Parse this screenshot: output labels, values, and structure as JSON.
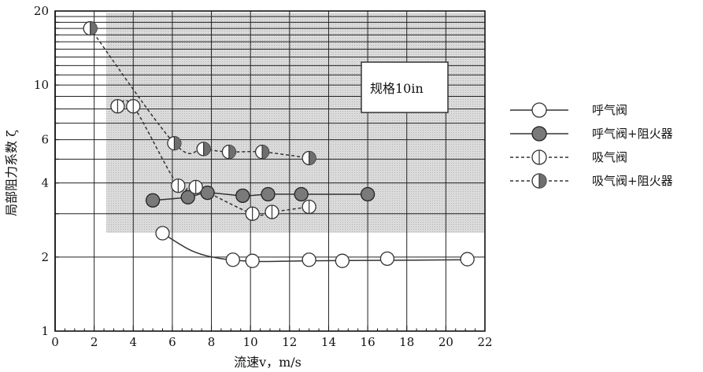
{
  "chart_data": {
    "type": "scatter",
    "title": "",
    "xlabel": "流速v，m/s",
    "ylabel": "局部阻力系数 ζ",
    "xlim": [
      0,
      22
    ],
    "ylim": [
      1,
      20
    ],
    "y_scale": "log",
    "grid": true,
    "x_ticks": [
      0,
      2,
      4,
      6,
      8,
      10,
      12,
      14,
      16,
      18,
      20,
      22
    ],
    "y_ticks": [
      1,
      2,
      4,
      6,
      10,
      20
    ],
    "legend_position": "right",
    "annotation": "规格10in",
    "series": [
      {
        "name": "呼气阀",
        "marker": "open-circle",
        "line": "solid",
        "x": [
          5.5,
          9.1,
          10.1,
          13.0,
          14.7,
          17.0,
          21.1
        ],
        "y": [
          2.5,
          1.95,
          1.93,
          1.95,
          1.93,
          1.97,
          1.96
        ]
      },
      {
        "name": "呼气阀+阻火器",
        "marker": "filled-circle",
        "line": "solid",
        "x": [
          5.0,
          6.8,
          7.8,
          9.6,
          10.9,
          12.6,
          16.0
        ],
        "y": [
          3.4,
          3.5,
          3.65,
          3.55,
          3.6,
          3.6,
          3.6
        ]
      },
      {
        "name": "吸气阀",
        "marker": "vertical-half",
        "line": "dashed",
        "x": [
          3.2,
          4.0,
          6.3,
          7.2,
          10.1,
          11.1,
          13.0
        ],
        "y": [
          8.2,
          8.2,
          3.9,
          3.85,
          3.0,
          3.05,
          3.2
        ]
      },
      {
        "name": "吸气阀+阻火器",
        "marker": "right-half-filled",
        "line": "dashed",
        "x": [
          1.8,
          6.1,
          7.6,
          8.9,
          10.6,
          13.0
        ],
        "y": [
          17.0,
          5.8,
          5.5,
          5.35,
          5.35,
          5.05
        ]
      }
    ]
  }
}
